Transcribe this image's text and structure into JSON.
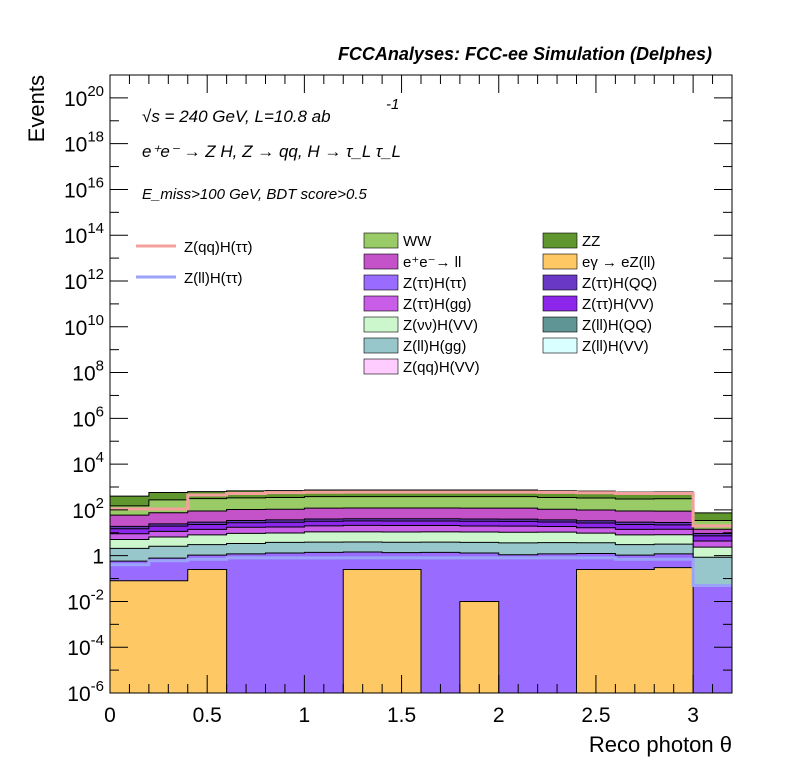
{
  "header": {
    "title": "FCCAnalyses: FCC-ee Simulation (Delphes)"
  },
  "annotations": {
    "energy": "√s = 240 GeV, L=10.8 ab",
    "energy_exp": "-1",
    "process": "e⁺e⁻ → Z H, Z → qq, H → τ_L τ_L",
    "selection": "E_miss>100 GeV, BDT score>0.5"
  },
  "chart_data": {
    "type": "bar",
    "stacked": true,
    "histtype": "step-filled",
    "xlabel": "Reco photon θ",
    "ylabel": "Events",
    "xlim": [
      0,
      3.2
    ],
    "ylim": [
      1e-06,
      1e+21
    ],
    "yscale": "log",
    "xticks": [
      {
        "v": 0,
        "label": "0"
      },
      {
        "v": 0.5,
        "label": "0.5"
      },
      {
        "v": 1,
        "label": "1"
      },
      {
        "v": 1.5,
        "label": "1.5"
      },
      {
        "v": 2,
        "label": "2"
      },
      {
        "v": 2.5,
        "label": "2.5"
      },
      {
        "v": 3,
        "label": "3"
      }
    ],
    "yticks": [
      {
        "v": 1e-06,
        "base": "10",
        "exp": "-6"
      },
      {
        "v": 0.0001,
        "base": "10",
        "exp": "-4"
      },
      {
        "v": 0.01,
        "base": "10",
        "exp": "-2"
      },
      {
        "v": 1,
        "base": "1",
        "exp": ""
      },
      {
        "v": 100.0,
        "base": "10",
        "exp": "2"
      },
      {
        "v": 10000.0,
        "base": "10",
        "exp": "4"
      },
      {
        "v": 1000000.0,
        "base": "10",
        "exp": "6"
      },
      {
        "v": 100000000.0,
        "base": "10",
        "exp": "8"
      },
      {
        "v": 10000000000.0,
        "base": "10",
        "exp": "10"
      },
      {
        "v": 1000000000000.0,
        "base": "10",
        "exp": "12"
      },
      {
        "v": 100000000000000.0,
        "base": "10",
        "exp": "14"
      },
      {
        "v": 1e+16,
        "base": "10",
        "exp": "16"
      },
      {
        "v": 1e+18,
        "base": "10",
        "exp": "18"
      },
      {
        "v": 1e+20,
        "base": "10",
        "exp": "20"
      }
    ],
    "bin_edges": [
      0,
      0.2,
      0.4,
      0.6,
      0.8,
      1.0,
      1.2,
      1.4,
      1.6,
      1.8,
      2.0,
      2.2,
      2.4,
      2.6,
      2.8,
      3.0,
      3.2
    ],
    "stack_bottom_to_top": [
      {
        "name": "eγ → eZ(ll)",
        "color": "#fec964",
        "values": [
          0.08,
          0.08,
          0.25,
          1e-07,
          1e-07,
          1e-07,
          0.25,
          0.25,
          1e-07,
          0.01,
          1e-07,
          1e-07,
          0.25,
          0.25,
          0.3,
          1e-07
        ]
      },
      {
        "name": "Z(ττ)H(ττ)",
        "color": "#9a6bff",
        "values": [
          0.5,
          0.7,
          0.8,
          1.2,
          1.3,
          1.4,
          1.2,
          1.1,
          1.4,
          1.3,
          1.1,
          1.2,
          1.0,
          0.8,
          0.9,
          0.05
        ]
      },
      {
        "name": "Z(ll)H(gg)",
        "color": "#97c7cb",
        "values": [
          1.5,
          1.8,
          2.0,
          2.2,
          2.5,
          2.5,
          2.5,
          2.5,
          2.5,
          2.5,
          2.5,
          2.5,
          2.4,
          2.0,
          2.0,
          0.8
        ]
      },
      {
        "name": "Z(νν)H(VV)",
        "color": "#ccf7cc",
        "values": [
          3,
          4,
          5,
          6,
          6,
          7,
          7,
          7,
          7,
          7,
          7,
          7,
          6,
          5,
          5,
          1.5
        ]
      },
      {
        "name": "Z(ττ)H(gg)",
        "color": "#c95de8",
        "values": [
          4,
          5,
          6,
          8,
          8,
          9,
          10,
          10,
          10,
          9,
          9,
          8,
          7,
          6,
          6,
          2
        ]
      },
      {
        "name": "Z(ττ)H(VV)",
        "color": "#8c26ea",
        "values": [
          6,
          8,
          9,
          10,
          11,
          12,
          12,
          12,
          12,
          12,
          12,
          11,
          10,
          9,
          8,
          3
        ]
      },
      {
        "name": "Z(ττ)H(QQ)",
        "color": "#6938c4",
        "values": [
          4,
          5,
          6,
          7,
          8,
          8,
          8,
          8,
          8,
          8,
          8,
          7,
          7,
          6,
          6,
          2
        ]
      },
      {
        "name": "e⁺e⁻→ ll",
        "color": "#c452c8",
        "values": [
          40,
          50,
          60,
          70,
          70,
          80,
          80,
          80,
          80,
          80,
          80,
          70,
          65,
          60,
          60,
          5
        ]
      },
      {
        "name": "WW",
        "color": "#99cc66",
        "values": [
          90,
          200,
          220,
          230,
          240,
          260,
          260,
          260,
          260,
          260,
          260,
          240,
          230,
          210,
          220,
          20
        ]
      },
      {
        "name": "ZZ",
        "color": "#5f962e",
        "values": [
          250,
          300,
          320,
          340,
          350,
          360,
          360,
          360,
          360,
          360,
          360,
          340,
          330,
          300,
          300,
          40
        ]
      }
    ],
    "legend_only": [
      {
        "name": "Z(ll)H(QQ)",
        "color": "#5f9595"
      },
      {
        "name": "Z(ll)H(VV)",
        "color": "#d9ffff"
      },
      {
        "name": "Z(qq)H(VV)",
        "color": "#ffccff"
      }
    ],
    "signal_lines": [
      {
        "name": "Z(qq)H(ττ)",
        "color": "#f4a09c",
        "values": [
          110,
          110,
          450,
          520,
          570,
          590,
          600,
          600,
          600,
          600,
          600,
          580,
          560,
          520,
          520,
          20
        ]
      },
      {
        "name": "Z(ll)H(ττ)",
        "color": "#9aa3f9",
        "values": [
          0.4,
          0.6,
          0.7,
          0.8,
          0.8,
          0.8,
          0.8,
          0.8,
          0.8,
          0.8,
          0.8,
          0.8,
          0.8,
          0.7,
          0.7,
          0.05
        ]
      }
    ],
    "legend": {
      "placement": "top-center",
      "lines": [
        "Z(qq)H(ττ)",
        "Z(ll)H(ττ)"
      ],
      "col1": [
        "WW",
        "e⁺e⁻→ ll",
        "Z(ττ)H(ττ)",
        "Z(ττ)H(gg)",
        "Z(νν)H(VV)",
        "Z(ll)H(gg)",
        "Z(qq)H(VV)"
      ],
      "col2": [
        "ZZ",
        "eγ → eZ(ll)",
        "Z(ττ)H(QQ)",
        "Z(ττ)H(VV)",
        "Z(ll)H(QQ)",
        "Z(ll)H(VV)"
      ]
    }
  }
}
